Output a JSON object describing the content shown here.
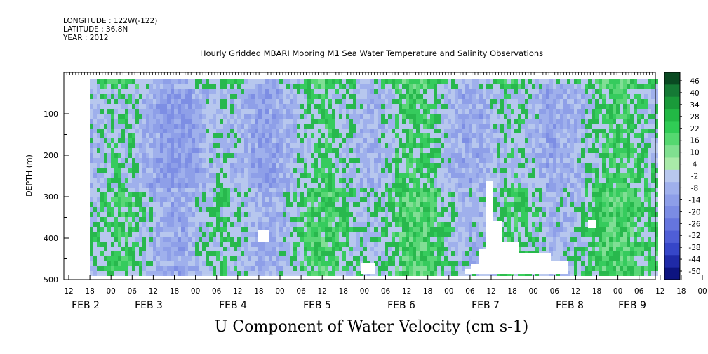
{
  "header": {
    "longitude": "LONGITUDE : 122W(-122)",
    "latitude": "LATITUDE : 36.8N",
    "year": "YEAR : 2012"
  },
  "chart_data": {
    "type": "heatmap",
    "title": "Hourly Gridded MBARI Mooring M1 Sea Water Temperature and Salinity Observations",
    "xlabel": "U Component of Water Velocity (cm s-1)",
    "ylabel": "DEPTH (m)",
    "ylim": [
      500,
      0
    ],
    "y_ticks": [
      100,
      200,
      300,
      400,
      500
    ],
    "x_hour_ticks": [
      "12",
      "18",
      "00",
      "06",
      "12",
      "18",
      "00",
      "06",
      "12",
      "18",
      "00",
      "06",
      "12",
      "18",
      "00",
      "06",
      "12",
      "18",
      "00",
      "06",
      "12",
      "18",
      "00",
      "06",
      "12",
      "18",
      "00",
      "06",
      "12",
      "18",
      "00",
      "06"
    ],
    "x_date_labels": [
      "FEB 2",
      "FEB 3",
      "FEB 4",
      "FEB 5",
      "FEB 6",
      "FEB 7",
      "FEB 8",
      "FEB 9"
    ],
    "colorbar": {
      "labels": [
        "46",
        "40",
        "34",
        "28",
        "22",
        "16",
        "10",
        "4",
        "-2",
        "-8",
        "-14",
        "-20",
        "-26",
        "-32",
        "-38",
        "-44",
        "-50"
      ],
      "min": -50,
      "max": 49,
      "colors": [
        "#0a4a22",
        "#157a35",
        "#1a9a3a",
        "#22b845",
        "#30cc55",
        "#55d870",
        "#80e090",
        "#a9eaa9",
        "#b8c8ee",
        "#9fb0ec",
        "#8d9ee8",
        "#7b8ce4",
        "#6575de",
        "#4f5ed6",
        "#3646c8",
        "#1f2aa8",
        "#0d1480"
      ]
    },
    "pattern_notes": "Mostly blue-violet (negative) in upper and mid depths with scattered green (positive) streaks; stronger green patches below 250 m toward FEB 7-9; white gaps of missing data near the bottom."
  }
}
